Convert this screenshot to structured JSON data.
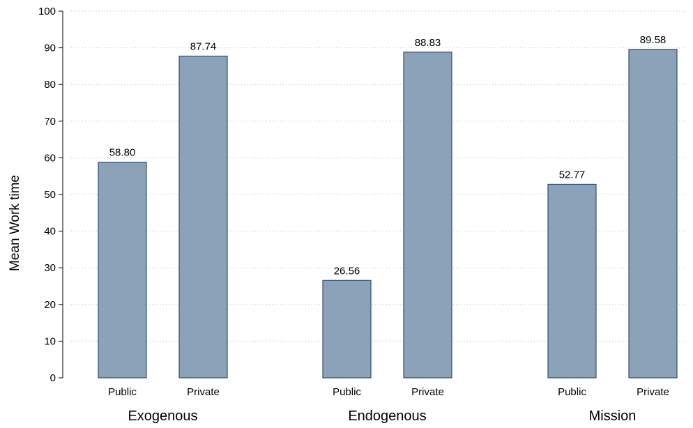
{
  "chart_data": {
    "type": "bar",
    "ylabel": "Mean Work time",
    "ylim": [
      0,
      100
    ],
    "yticks": [
      0,
      10,
      20,
      30,
      40,
      50,
      60,
      70,
      80,
      90,
      100
    ],
    "grid": true,
    "groups": [
      {
        "name": "Exogenous",
        "bars": [
          {
            "category": "Public",
            "value": 58.8,
            "label": "58.80"
          },
          {
            "category": "Private",
            "value": 87.74,
            "label": "87.74"
          }
        ]
      },
      {
        "name": "Endogenous",
        "bars": [
          {
            "category": "Public",
            "value": 26.56,
            "label": "26.56"
          },
          {
            "category": "Private",
            "value": 88.83,
            "label": "88.83"
          }
        ]
      },
      {
        "name": "Mission",
        "bars": [
          {
            "category": "Public",
            "value": 52.77,
            "label": "52.77"
          },
          {
            "category": "Private",
            "value": 89.58,
            "label": "89.58"
          }
        ]
      }
    ],
    "colors": {
      "bar_fill": "#8ca2b8",
      "bar_stroke": "#2f4f6f",
      "grid": "#bfbfbf",
      "axis": "#000000"
    }
  }
}
